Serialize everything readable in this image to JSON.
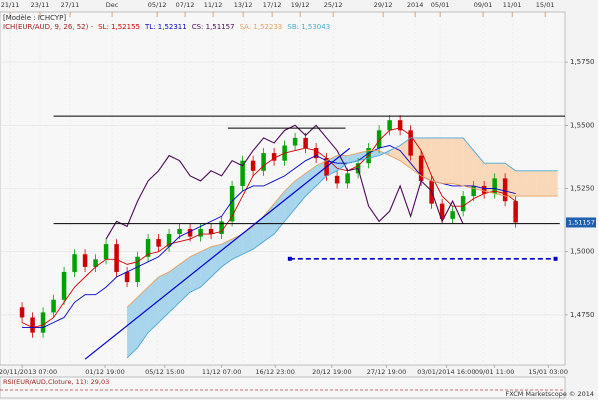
{
  "chart_data": {
    "type": "candlestick",
    "model": "[Modèle : ICHCYP]",
    "indicator": "ICH(EUR/AUD, 9, 26, 52) -",
    "rsi_label": "RSI(EUR/AUD,Cloture, 11): 29,03",
    "footer": "FXCM Marketscope © 2014",
    "last_price_label": "1,51157",
    "xlim": [
      -2.1,
      51.7
    ],
    "ylim": [
      1.4552,
      1.5948
    ],
    "yticks": [
      {
        "value": 1.575,
        "label": "1,5750"
      },
      {
        "value": 1.55,
        "label": "1,5500"
      },
      {
        "value": 1.525,
        "label": "1,5250"
      },
      {
        "value": 1.5,
        "label": "1,5000"
      },
      {
        "value": 1.475,
        "label": "1,4750"
      }
    ],
    "top_ticks": [
      {
        "value": -1.14,
        "label": "21/11"
      },
      {
        "value": 1.71,
        "label": "23/11"
      },
      {
        "value": 4.57,
        "label": "27/11"
      },
      {
        "value": 8.57,
        "label": "Dec"
      },
      {
        "value": 12.86,
        "label": "05/12"
      },
      {
        "value": 15.52,
        "label": "07/12"
      },
      {
        "value": 18.19,
        "label": "11/12"
      },
      {
        "value": 21.05,
        "label": "13/12"
      },
      {
        "value": 23.81,
        "label": "17/12"
      },
      {
        "value": 26.48,
        "label": "19/12"
      },
      {
        "value": 29.62,
        "label": "25/12"
      },
      {
        "value": 34.38,
        "label": "29/12"
      },
      {
        "value": 37.43,
        "label": "2014"
      },
      {
        "value": 39.81,
        "label": "05/01"
      },
      {
        "value": 43.9,
        "label": "09/01"
      },
      {
        "value": 46.67,
        "label": "11/01"
      },
      {
        "value": 49.81,
        "label": "15/01"
      }
    ],
    "bottom_ticks": [
      {
        "value": 0,
        "label": "20/11/2013 07:00"
      },
      {
        "value": 7.9,
        "label": "01/12 19:00"
      },
      {
        "value": 13.6,
        "label": "05/12 15:00"
      },
      {
        "value": 19.0,
        "label": "11/12 07:00"
      },
      {
        "value": 24.1,
        "label": "16/12 23:00"
      },
      {
        "value": 29.5,
        "label": "20/12 19:00"
      },
      {
        "value": 34.7,
        "label": "27/12 19:00"
      },
      {
        "value": 40.4,
        "label": "03/01/2014 16:00"
      },
      {
        "value": 45.0,
        "label": "09/01 11:00"
      },
      {
        "value": 50.1,
        "label": "15/01 03:00"
      }
    ],
    "grid": true,
    "candles": {
      "up_color": "#00a000",
      "down_color": "#d00000",
      "open": [
        1.478,
        1.474,
        1.468,
        1.476,
        1.481,
        1.492,
        1.499,
        1.494,
        1.497,
        1.503,
        1.492,
        1.488,
        1.498,
        1.505,
        1.502,
        1.507,
        1.509,
        1.506,
        1.509,
        1.507,
        1.512,
        1.526,
        1.536,
        1.532,
        1.539,
        1.536,
        1.542,
        1.545,
        1.541,
        1.537,
        1.53,
        1.527,
        1.531,
        1.535,
        1.541,
        1.548,
        1.552,
        1.548,
        1.538,
        1.528,
        1.519,
        1.513,
        1.516,
        1.522,
        1.526,
        1.523,
        1.529,
        1.52
      ],
      "high": [
        1.48,
        1.476,
        1.478,
        1.483,
        1.494,
        1.501,
        1.501,
        1.499,
        1.505,
        1.505,
        1.494,
        1.5,
        1.507,
        1.507,
        1.509,
        1.511,
        1.511,
        1.511,
        1.511,
        1.514,
        1.528,
        1.538,
        1.538,
        1.541,
        1.541,
        1.544,
        1.547,
        1.547,
        1.543,
        1.539,
        1.532,
        1.533,
        1.537,
        1.543,
        1.55,
        1.554,
        1.554,
        1.55,
        1.54,
        1.53,
        1.521,
        1.518,
        1.524,
        1.528,
        1.528,
        1.531,
        1.531,
        1.522
      ],
      "low": [
        1.472,
        1.466,
        1.466,
        1.474,
        1.479,
        1.49,
        1.492,
        1.492,
        1.495,
        1.49,
        1.486,
        1.486,
        1.496,
        1.5,
        1.5,
        1.505,
        1.504,
        1.504,
        1.505,
        1.505,
        1.51,
        1.524,
        1.53,
        1.53,
        1.534,
        1.534,
        1.54,
        1.539,
        1.535,
        1.528,
        1.525,
        1.525,
        1.529,
        1.533,
        1.539,
        1.546,
        1.546,
        1.536,
        1.526,
        1.517,
        1.511,
        1.511,
        1.514,
        1.52,
        1.521,
        1.521,
        1.518,
        1.50957
      ],
      "close": [
        1.474,
        1.468,
        1.476,
        1.481,
        1.492,
        1.499,
        1.494,
        1.497,
        1.503,
        1.492,
        1.488,
        1.498,
        1.505,
        1.502,
        1.507,
        1.509,
        1.506,
        1.509,
        1.507,
        1.512,
        1.526,
        1.536,
        1.532,
        1.539,
        1.536,
        1.542,
        1.545,
        1.541,
        1.537,
        1.53,
        1.527,
        1.531,
        1.535,
        1.541,
        1.548,
        1.552,
        1.548,
        1.538,
        1.528,
        1.519,
        1.513,
        1.516,
        1.522,
        1.526,
        1.523,
        1.529,
        1.52,
        1.51157
      ]
    },
    "series": [
      {
        "name": "SL: 1,52155",
        "color": "#d00000",
        "values": [
          1.472,
          1.47,
          1.471,
          1.474,
          1.48,
          1.486,
          1.49,
          1.494,
          1.497,
          1.497,
          1.495,
          1.496,
          1.499,
          1.5,
          1.503,
          1.504,
          1.505,
          1.507,
          1.507,
          1.508,
          1.514,
          1.522,
          1.53,
          1.534,
          1.537,
          1.539,
          1.54,
          1.541,
          1.54,
          1.537,
          1.533,
          1.532,
          1.534,
          1.538,
          1.544,
          1.548,
          1.549,
          1.546,
          1.54,
          1.53,
          1.522,
          1.518,
          1.518,
          1.521,
          1.523,
          1.524,
          1.523,
          1.52,
          null,
          null,
          null,
          null
        ]
      },
      {
        "name": "TL: 1,52311",
        "color": "#0000c8",
        "values": [
          1.47,
          1.47,
          1.47,
          1.472,
          1.474,
          1.48,
          1.483,
          1.483,
          1.486,
          1.49,
          1.492,
          1.494,
          1.496,
          1.498,
          1.502,
          1.506,
          1.508,
          1.51,
          1.512,
          1.514,
          1.52,
          1.524,
          1.526,
          1.526,
          1.528,
          1.53,
          1.533,
          1.536,
          1.538,
          1.536,
          1.535,
          1.535,
          1.536,
          1.539,
          1.541,
          1.542,
          1.54,
          1.535,
          1.53,
          1.528,
          1.527,
          1.526,
          1.526,
          1.526,
          1.525,
          1.525,
          1.524,
          1.523,
          null,
          null,
          null,
          null
        ]
      },
      {
        "name": "CS: 1,51157",
        "color": "#4b0a55",
        "values": [
          null,
          null,
          null,
          null,
          null,
          null,
          null,
          null,
          1.505,
          1.512,
          1.51,
          1.52,
          1.528,
          1.532,
          1.538,
          1.536,
          1.53,
          1.528,
          1.532,
          1.53,
          1.536,
          1.534,
          1.54,
          1.545,
          1.543,
          1.548,
          1.55,
          1.546,
          1.55,
          1.545,
          1.54,
          1.532,
          1.533,
          1.518,
          1.512,
          1.516,
          1.526,
          1.514,
          1.528,
          1.524,
          1.512,
          1.52,
          1.511,
          null,
          null,
          null,
          null,
          null,
          null,
          null,
          null,
          null
        ]
      },
      {
        "name": "SA: 1,52233",
        "color": "#e8a060",
        "values": [
          null,
          null,
          null,
          null,
          null,
          null,
          null,
          null,
          null,
          null,
          1.478,
          1.482,
          1.486,
          1.49,
          1.492,
          1.495,
          1.498,
          1.5,
          1.502,
          1.503,
          1.505,
          1.507,
          1.51,
          1.514,
          1.519,
          1.524,
          1.528,
          1.531,
          1.534,
          1.536,
          1.538,
          1.538,
          1.539,
          1.54,
          1.54,
          1.538,
          1.536,
          1.533,
          1.53,
          1.528,
          1.527,
          1.527,
          1.526,
          1.525,
          1.524,
          1.523,
          1.522,
          1.522,
          1.522,
          1.522,
          1.522,
          1.522
        ]
      },
      {
        "name": "SB: 1,53043",
        "color": "#4aa8d8",
        "values": [
          null,
          null,
          null,
          null,
          null,
          null,
          null,
          null,
          null,
          null,
          1.458,
          1.462,
          1.468,
          1.472,
          1.476,
          1.48,
          1.484,
          1.486,
          1.49,
          1.494,
          1.497,
          1.499,
          1.501,
          1.504,
          1.507,
          1.512,
          1.517,
          1.522,
          1.526,
          1.53,
          1.532,
          1.535,
          1.536,
          1.537,
          1.538,
          1.54,
          1.542,
          1.545,
          1.545,
          1.545,
          1.545,
          1.545,
          1.545,
          1.54,
          1.535,
          1.535,
          1.535,
          1.532,
          1.532,
          1.532,
          1.532,
          1.532
        ]
      }
    ],
    "cloud_up_color": "#a8d4ec",
    "cloud_down_color": "#f8d8b8",
    "levels": [
      {
        "value": 1.5536,
        "from": 3,
        "to": 51.7,
        "color": "#000000"
      },
      {
        "value": 1.5489,
        "from": 19.6,
        "to": 30.8,
        "color": "#000000"
      },
      {
        "value": 1.5111,
        "from": 3,
        "to": 51.2,
        "color": "#000000"
      },
      {
        "value": 1.4972,
        "from": 25.5,
        "to": 50.8,
        "color": "#0000cc",
        "dashed": true
      }
    ],
    "trendline": {
      "x": [
        6,
        31.2
      ],
      "y": [
        1.4575,
        1.5409
      ],
      "color": "#0000cc"
    }
  }
}
